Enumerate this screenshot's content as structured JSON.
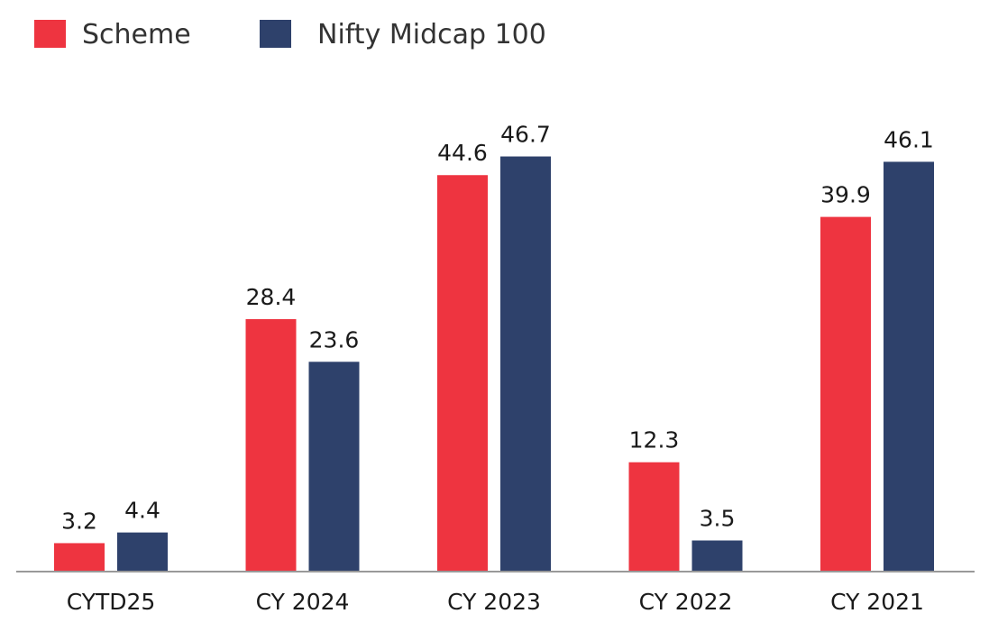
{
  "chart_data": {
    "type": "bar",
    "title": "",
    "xlabel": "",
    "ylabel": "",
    "categories": [
      "CYTD25",
      "CY 2024",
      "CY 2023",
      "CY 2022",
      "CY 2021"
    ],
    "series": [
      {
        "name": "Scheme",
        "color": "#ee3440",
        "values": [
          3.2,
          28.4,
          44.6,
          12.3,
          39.9
        ]
      },
      {
        "name": "Nifty Midcap 100",
        "color": "#2e416b",
        "values": [
          4.4,
          23.6,
          46.7,
          3.5,
          46.1
        ]
      }
    ],
    "data_labels": true,
    "ylim": [
      0,
      50
    ],
    "grid": false,
    "legend_position": "top-left",
    "axis_color": "#999999"
  }
}
